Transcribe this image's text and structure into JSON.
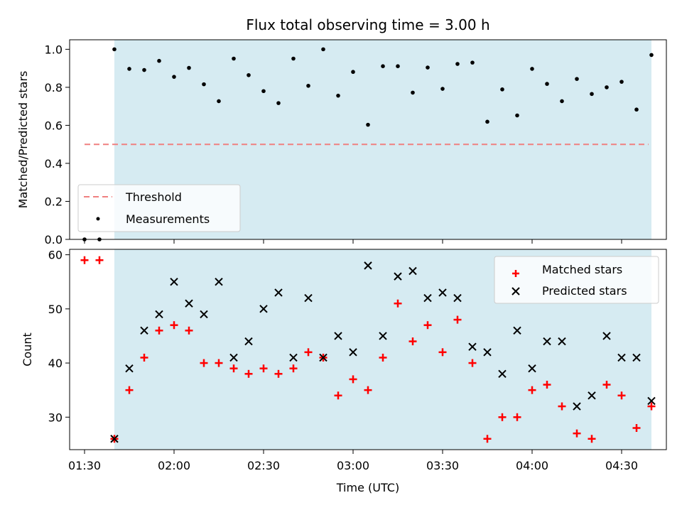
{
  "chart_data": [
    {
      "type": "scatter",
      "title": "Flux total observing time = 3.00 h",
      "xlabel": "",
      "ylabel": "Matched/Predicted stars",
      "ylim": [
        0,
        1.05
      ],
      "yticks": [
        "0.0",
        "0.2",
        "0.4",
        "0.6",
        "0.8",
        "1.0"
      ],
      "xlim": [
        "01:25",
        "04:45"
      ],
      "shaded_span": [
        "01:40",
        "04:40"
      ],
      "shade_color": "#add8e6",
      "threshold": {
        "name": "Threshold",
        "value": 0.5,
        "x_range": [
          "01:30",
          "04:39"
        ],
        "color": "#f08080"
      },
      "series": [
        {
          "name": "Measurements",
          "color": "#000000",
          "x": [
            "01:30",
            "01:35",
            "01:40",
            "01:45",
            "01:50",
            "01:55",
            "02:00",
            "02:05",
            "02:10",
            "02:15",
            "02:20",
            "02:25",
            "02:30",
            "02:35",
            "02:40",
            "02:45",
            "02:50",
            "02:55",
            "03:00",
            "03:05",
            "03:10",
            "03:15",
            "03:20",
            "03:25",
            "03:30",
            "03:35",
            "03:40",
            "03:45",
            "03:50",
            "03:55",
            "04:00",
            "04:05",
            "04:10",
            "04:15",
            "04:20",
            "04:25",
            "04:30",
            "04:35",
            "04:40"
          ],
          "values": [
            0.0,
            0.0,
            1.0,
            0.897,
            0.891,
            0.939,
            0.855,
            0.902,
            0.816,
            0.727,
            0.951,
            0.864,
            0.78,
            0.717,
            0.951,
            0.808,
            1.0,
            0.756,
            0.881,
            0.603,
            0.911,
            0.911,
            0.772,
            0.904,
            0.792,
            0.923,
            0.93,
            0.619,
            0.789,
            0.652,
            0.897,
            0.818,
            0.727,
            0.844,
            0.765,
            0.8,
            0.829,
            0.683,
            0.97
          ]
        }
      ],
      "legend": {
        "position": "lower-left",
        "entries": [
          "Threshold",
          "Measurements"
        ]
      }
    },
    {
      "type": "scatter",
      "title": "",
      "xlabel": "Time (UTC)",
      "ylabel": "Count",
      "ylim": [
        24,
        61
      ],
      "yticks": [
        "30",
        "40",
        "50",
        "60"
      ],
      "xlim": [
        "01:25",
        "04:45"
      ],
      "xticks": [
        "01:30",
        "02:00",
        "02:30",
        "03:00",
        "03:30",
        "04:00",
        "04:30"
      ],
      "shaded_span": [
        "01:40",
        "04:40"
      ],
      "series": [
        {
          "name": "Matched stars",
          "marker": "+",
          "color": "#ff0000",
          "x": [
            "01:30",
            "01:35",
            "01:40",
            "01:45",
            "01:50",
            "01:55",
            "02:00",
            "02:05",
            "02:10",
            "02:15",
            "02:20",
            "02:25",
            "02:30",
            "02:35",
            "02:40",
            "02:45",
            "02:50",
            "02:55",
            "03:00",
            "03:05",
            "03:10",
            "03:15",
            "03:20",
            "03:25",
            "03:30",
            "03:35",
            "03:40",
            "03:45",
            "03:50",
            "03:55",
            "04:00",
            "04:05",
            "04:10",
            "04:15",
            "04:20",
            "04:25",
            "04:30",
            "04:35",
            "04:40"
          ],
          "values": [
            59,
            59,
            26,
            35,
            41,
            46,
            47,
            46,
            40,
            40,
            39,
            38,
            39,
            38,
            39,
            42,
            41,
            34,
            37,
            35,
            41,
            51,
            44,
            47,
            42,
            48,
            40,
            26,
            30,
            30,
            35,
            36,
            32,
            27,
            26,
            36,
            34,
            28,
            32
          ]
        },
        {
          "name": "Predicted stars",
          "marker": "x",
          "color": "#000000",
          "x": [
            "01:40",
            "01:45",
            "01:50",
            "01:55",
            "02:00",
            "02:05",
            "02:10",
            "02:15",
            "02:20",
            "02:25",
            "02:30",
            "02:35",
            "02:40",
            "02:45",
            "02:50",
            "02:55",
            "03:00",
            "03:05",
            "03:10",
            "03:15",
            "03:20",
            "03:25",
            "03:30",
            "03:35",
            "03:40",
            "03:45",
            "03:50",
            "03:55",
            "04:00",
            "04:05",
            "04:10",
            "04:15",
            "04:20",
            "04:25",
            "04:30",
            "04:35",
            "04:40"
          ],
          "values": [
            26,
            39,
            46,
            49,
            55,
            51,
            49,
            55,
            41,
            44,
            50,
            53,
            41,
            52,
            41,
            45,
            42,
            58,
            45,
            56,
            57,
            52,
            53,
            52,
            43,
            42,
            38,
            46,
            39,
            44,
            44,
            32,
            34,
            45,
            41,
            41,
            33
          ]
        }
      ],
      "legend": {
        "position": "top-right",
        "entries": [
          "Matched stars",
          "Predicted stars"
        ]
      }
    }
  ]
}
